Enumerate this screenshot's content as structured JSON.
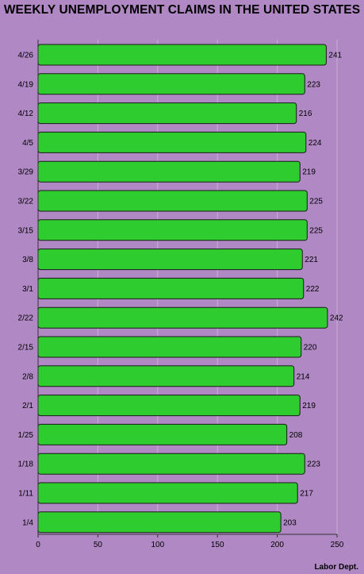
{
  "chart_data": {
    "type": "bar",
    "orientation": "horizontal",
    "title": "WEEKLY UNEMPLOYMENT CLAIMS IN THE UNITED STATES",
    "categories": [
      "4/26",
      "4/19",
      "4/12",
      "4/5",
      "3/29",
      "3/22",
      "3/15",
      "3/8",
      "3/1",
      "2/22",
      "2/15",
      "2/8",
      "2/1",
      "1/25",
      "1/18",
      "1/11",
      "1/4"
    ],
    "values": [
      241,
      223,
      216,
      224,
      219,
      225,
      225,
      221,
      222,
      242,
      220,
      214,
      219,
      208,
      223,
      217,
      203
    ],
    "xlim": [
      0,
      250
    ],
    "xticks": [
      0,
      50,
      100,
      150,
      200,
      250
    ],
    "grid": true,
    "bar_color": "#2ecc2e",
    "source": "Labor Dept."
  }
}
